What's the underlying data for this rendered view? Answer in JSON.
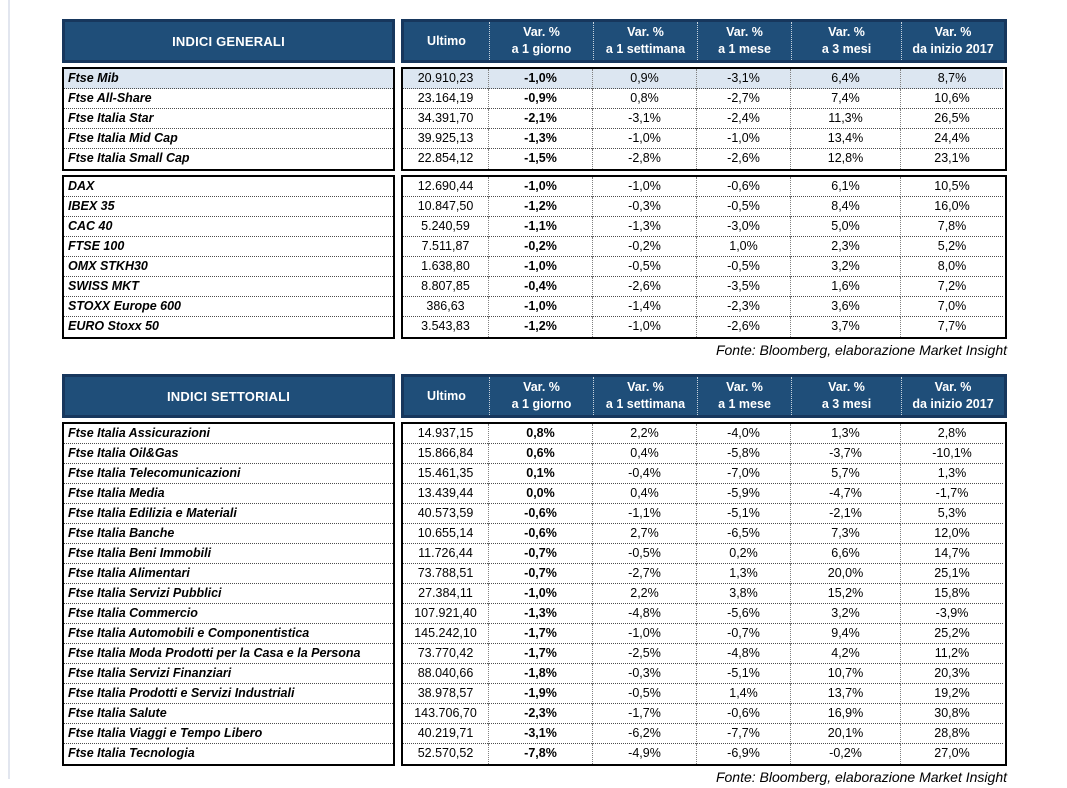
{
  "source_note": "Fonte: Bloomberg, elaborazione Market Insight",
  "columns": [
    {
      "label": "Ultimo",
      "sub": ""
    },
    {
      "label": "Var. %",
      "sub": "a 1 giorno"
    },
    {
      "label": "Var. %",
      "sub": "a 1 settimana"
    },
    {
      "label": "Var. %",
      "sub": "a 1 mese"
    },
    {
      "label": "Var. %",
      "sub": "a 3 mesi"
    },
    {
      "label": "Var. %",
      "sub": "da inizio 2017"
    }
  ],
  "table1": {
    "title": "INDICI GENERALI",
    "blocks": [
      [
        {
          "label": "Ftse Mib",
          "ultimo": "20.910,23",
          "d1": "-1,0%",
          "w1": "0,9%",
          "m1": "-3,1%",
          "m3": "6,4%",
          "ytd": "8,7%",
          "highlight": true
        },
        {
          "label": "Ftse All-Share",
          "ultimo": "23.164,19",
          "d1": "-0,9%",
          "w1": "0,8%",
          "m1": "-2,7%",
          "m3": "7,4%",
          "ytd": "10,6%"
        },
        {
          "label": "Ftse Italia Star",
          "ultimo": "34.391,70",
          "d1": "-2,1%",
          "w1": "-3,1%",
          "m1": "-2,4%",
          "m3": "11,3%",
          "ytd": "26,5%"
        },
        {
          "label": "Ftse Italia Mid Cap",
          "ultimo": "39.925,13",
          "d1": "-1,3%",
          "w1": "-1,0%",
          "m1": "-1,0%",
          "m3": "13,4%",
          "ytd": "24,4%"
        },
        {
          "label": "Ftse Italia Small Cap",
          "ultimo": "22.854,12",
          "d1": "-1,5%",
          "w1": "-2,8%",
          "m1": "-2,6%",
          "m3": "12,8%",
          "ytd": "23,1%"
        }
      ],
      [
        {
          "label": "DAX",
          "ultimo": "12.690,44",
          "d1": "-1,0%",
          "w1": "-1,0%",
          "m1": "-0,6%",
          "m3": "6,1%",
          "ytd": "10,5%"
        },
        {
          "label": "IBEX 35",
          "ultimo": "10.847,50",
          "d1": "-1,2%",
          "w1": "-0,3%",
          "m1": "-0,5%",
          "m3": "8,4%",
          "ytd": "16,0%"
        },
        {
          "label": "CAC 40",
          "ultimo": "5.240,59",
          "d1": "-1,1%",
          "w1": "-1,3%",
          "m1": "-3,0%",
          "m3": "5,0%",
          "ytd": "7,8%"
        },
        {
          "label": "FTSE 100",
          "ultimo": "7.511,87",
          "d1": "-0,2%",
          "w1": "-0,2%",
          "m1": "1,0%",
          "m3": "2,3%",
          "ytd": "5,2%"
        },
        {
          "label": "OMX STKH30",
          "ultimo": "1.638,80",
          "d1": "-1,0%",
          "w1": "-0,5%",
          "m1": "-0,5%",
          "m3": "3,2%",
          "ytd": "8,0%"
        },
        {
          "label": "SWISS MKT",
          "ultimo": "8.807,85",
          "d1": "-0,4%",
          "w1": "-2,6%",
          "m1": "-3,5%",
          "m3": "1,6%",
          "ytd": "7,2%"
        },
        {
          "label": "STOXX Europe 600",
          "ultimo": "386,63",
          "d1": "-1,0%",
          "w1": "-1,4%",
          "m1": "-2,3%",
          "m3": "3,6%",
          "ytd": "7,0%"
        },
        {
          "label": "EURO Stoxx 50",
          "ultimo": "3.543,83",
          "d1": "-1,2%",
          "w1": "-1,0%",
          "m1": "-2,6%",
          "m3": "3,7%",
          "ytd": "7,7%"
        }
      ]
    ]
  },
  "table2": {
    "title": "INDICI SETTORIALI",
    "blocks": [
      [
        {
          "label": "Ftse Italia Assicurazioni",
          "ultimo": "14.937,15",
          "d1": "0,8%",
          "w1": "2,2%",
          "m1": "-4,0%",
          "m3": "1,3%",
          "ytd": "2,8%"
        },
        {
          "label": "Ftse Italia Oil&Gas",
          "ultimo": "15.866,84",
          "d1": "0,6%",
          "w1": "0,4%",
          "m1": "-5,8%",
          "m3": "-3,7%",
          "ytd": "-10,1%"
        },
        {
          "label": "Ftse Italia Telecomunicazioni",
          "ultimo": "15.461,35",
          "d1": "0,1%",
          "w1": "-0,4%",
          "m1": "-7,0%",
          "m3": "5,7%",
          "ytd": "1,3%"
        },
        {
          "label": "Ftse Italia Media",
          "ultimo": "13.439,44",
          "d1": "0,0%",
          "w1": "0,4%",
          "m1": "-5,9%",
          "m3": "-4,7%",
          "ytd": "-1,7%"
        },
        {
          "label": "Ftse Italia Edilizia e Materiali",
          "ultimo": "40.573,59",
          "d1": "-0,6%",
          "w1": "-1,1%",
          "m1": "-5,1%",
          "m3": "-2,1%",
          "ytd": "5,3%"
        },
        {
          "label": "Ftse Italia Banche",
          "ultimo": "10.655,14",
          "d1": "-0,6%",
          "w1": "2,7%",
          "m1": "-6,5%",
          "m3": "7,3%",
          "ytd": "12,0%"
        },
        {
          "label": "Ftse Italia Beni Immobili",
          "ultimo": "11.726,44",
          "d1": "-0,7%",
          "w1": "-0,5%",
          "m1": "0,2%",
          "m3": "6,6%",
          "ytd": "14,7%"
        },
        {
          "label": "Ftse Italia Alimentari",
          "ultimo": "73.788,51",
          "d1": "-0,7%",
          "w1": "-2,7%",
          "m1": "1,3%",
          "m3": "20,0%",
          "ytd": "25,1%"
        },
        {
          "label": "Ftse Italia Servizi Pubblici",
          "ultimo": "27.384,11",
          "d1": "-1,0%",
          "w1": "2,2%",
          "m1": "3,8%",
          "m3": "15,2%",
          "ytd": "15,8%"
        },
        {
          "label": "Ftse Italia Commercio",
          "ultimo": "107.921,40",
          "d1": "-1,3%",
          "w1": "-4,8%",
          "m1": "-5,6%",
          "m3": "3,2%",
          "ytd": "-3,9%"
        },
        {
          "label": "Ftse Italia Automobili e Componentistica",
          "ultimo": "145.242,10",
          "d1": "-1,7%",
          "w1": "-1,0%",
          "m1": "-0,7%",
          "m3": "9,4%",
          "ytd": "25,2%"
        },
        {
          "label": "Ftse Italia Moda Prodotti per la Casa e la Persona",
          "ultimo": "73.770,42",
          "d1": "-1,7%",
          "w1": "-2,5%",
          "m1": "-4,8%",
          "m3": "4,2%",
          "ytd": "11,2%"
        },
        {
          "label": "Ftse Italia Servizi Finanziari",
          "ultimo": "88.040,66",
          "d1": "-1,8%",
          "w1": "-0,3%",
          "m1": "-5,1%",
          "m3": "10,7%",
          "ytd": "20,3%"
        },
        {
          "label": "Ftse Italia Prodotti e Servizi Industriali",
          "ultimo": "38.978,57",
          "d1": "-1,9%",
          "w1": "-0,5%",
          "m1": "1,4%",
          "m3": "13,7%",
          "ytd": "19,2%"
        },
        {
          "label": "Ftse Italia Salute",
          "ultimo": "143.706,70",
          "d1": "-2,3%",
          "w1": "-1,7%",
          "m1": "-0,6%",
          "m3": "16,9%",
          "ytd": "30,8%"
        },
        {
          "label": "Ftse Italia Viaggi e Tempo Libero",
          "ultimo": "40.219,71",
          "d1": "-3,1%",
          "w1": "-6,2%",
          "m1": "-7,7%",
          "m3": "20,1%",
          "ytd": "28,8%"
        },
        {
          "label": "Ftse Italia Tecnologia",
          "ultimo": "52.570,52",
          "d1": "-7,8%",
          "w1": "-4,9%",
          "m1": "-6,9%",
          "m3": "-0,2%",
          "ytd": "27,0%"
        }
      ]
    ]
  },
  "colors": {
    "header_bg": "#1F4E79",
    "header_border": "#17375D",
    "highlight_row": "#DCE6F1",
    "body_border": "#000000"
  }
}
